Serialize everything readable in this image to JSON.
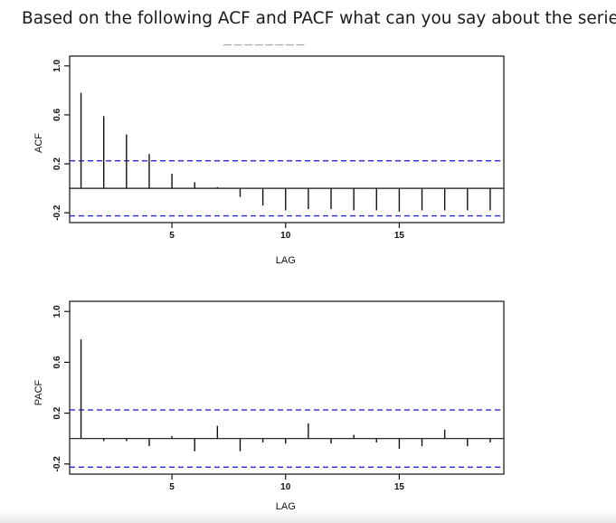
{
  "question": "Based on the following ACF and PACF what can you say about the series?",
  "colors": {
    "bound": "#2a2ad8",
    "axis": "#111111",
    "spike": "#111111"
  },
  "chart_data": [
    {
      "type": "bar",
      "ylabel": "ACF",
      "xlabel": "LAG",
      "xlim": [
        0.5,
        19.6
      ],
      "ylim": [
        -0.28,
        1.08
      ],
      "yticks": [
        -0.2,
        0.2,
        0.6,
        1.0
      ],
      "ytick_labels": [
        "-0.2",
        "0.2",
        "0.6",
        "1.0"
      ],
      "xticks": [
        5,
        10,
        15
      ],
      "xtick_labels": [
        "5",
        "10",
        "15"
      ],
      "confidence_bound": 0.225,
      "grid": false,
      "lags": [
        1,
        2,
        3,
        4,
        5,
        6,
        7,
        8,
        9,
        10,
        11,
        12,
        13,
        14,
        15,
        16,
        17,
        18,
        19
      ],
      "values": [
        0.78,
        0.59,
        0.44,
        0.28,
        0.12,
        0.05,
        0.01,
        -0.07,
        -0.14,
        -0.18,
        -0.17,
        -0.17,
        -0.18,
        -0.18,
        -0.19,
        -0.18,
        -0.18,
        -0.18,
        -0.18
      ]
    },
    {
      "type": "bar",
      "ylabel": "PACF",
      "xlabel": "LAG",
      "xlim": [
        0.5,
        19.6
      ],
      "ylim": [
        -0.28,
        1.08
      ],
      "yticks": [
        -0.2,
        0.2,
        0.6,
        1.0
      ],
      "ytick_labels": [
        "-0.2",
        "0.2",
        "0.6",
        "1.0"
      ],
      "xticks": [
        5,
        10,
        15
      ],
      "xtick_labels": [
        "5",
        "10",
        "15"
      ],
      "confidence_bound": 0.225,
      "grid": false,
      "lags": [
        1,
        2,
        3,
        4,
        5,
        6,
        7,
        8,
        9,
        10,
        11,
        12,
        13,
        14,
        15,
        16,
        17,
        18,
        19
      ],
      "values": [
        0.78,
        -0.02,
        -0.02,
        -0.06,
        0.02,
        -0.1,
        0.1,
        -0.1,
        -0.03,
        -0.04,
        0.12,
        -0.04,
        0.03,
        -0.03,
        -0.08,
        -0.06,
        0.07,
        -0.06,
        -0.03
      ]
    }
  ]
}
